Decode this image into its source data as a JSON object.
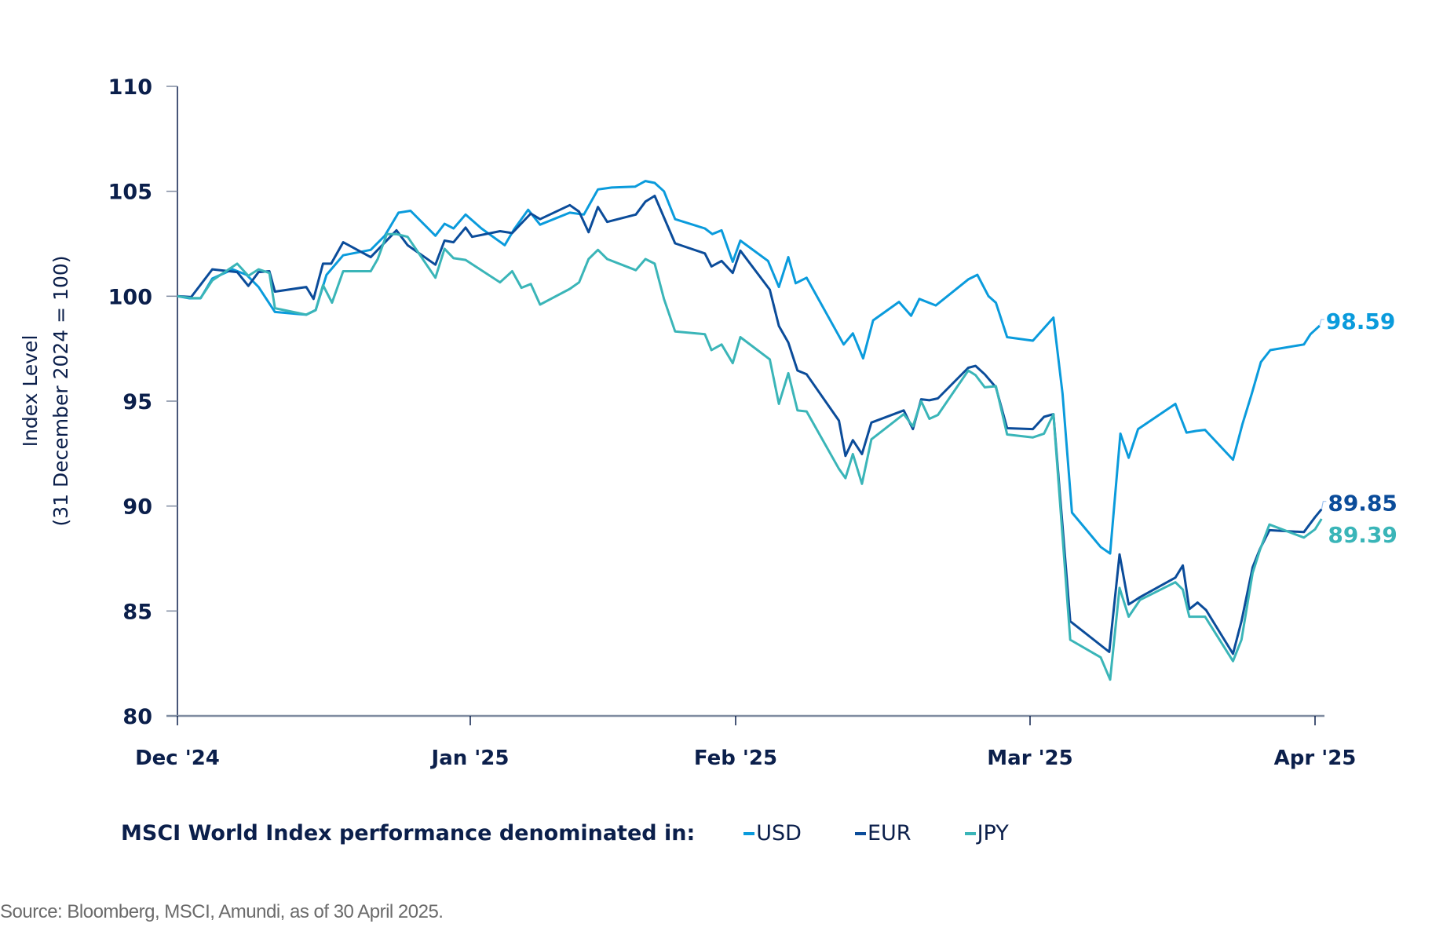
{
  "chart_data": {
    "type": "line",
    "title": "",
    "xlabel": "",
    "ylabel": "Index Level",
    "ylabel_sub": "(31 December 2024 = 100)",
    "x_units": "months since 1 Dec 2024",
    "xlim": [
      0,
      4.02
    ],
    "ylim": [
      80,
      110
    ],
    "yticks": [
      80,
      85,
      90,
      95,
      100,
      105,
      110
    ],
    "ytick_labels": [
      "80",
      "85",
      "90",
      "95",
      "100",
      "105",
      "110"
    ],
    "xticks": [
      0,
      1,
      2,
      3,
      4
    ],
    "xtick_labels": [
      "Dec '24",
      "Jan '25",
      "Feb '25",
      "Mar '25",
      "Apr '25"
    ],
    "grid": false,
    "legend_title": "MSCI World Index performance denominated in:",
    "legend_position": "bottom",
    "series": [
      {
        "name": "USD",
        "color": "#0a9bdc",
        "end_label": "98.59",
        "x": [
          0,
          0.041,
          0.079,
          0.119,
          0.189,
          0.236,
          0.277,
          0.333,
          0.44,
          0.472,
          0.509,
          0.566,
          0.66,
          0.708,
          0.755,
          0.796,
          0.881,
          0.912,
          0.943,
          0.984,
          1.042,
          1.13,
          1.165,
          1.218,
          1.263,
          1.375,
          1.428,
          1.481,
          1.533,
          1.621,
          1.66,
          1.695,
          1.73,
          1.772,
          1.884,
          1.912,
          1.947,
          1.989,
          2.016,
          2.11,
          2.147,
          2.179,
          2.204,
          2.241,
          2.367,
          2.398,
          2.433,
          2.467,
          2.555,
          2.596,
          2.624,
          2.68,
          2.79,
          2.821,
          2.859,
          2.884,
          2.922,
          3.01,
          3.082,
          3.114,
          3.147,
          3.248,
          3.281,
          3.317,
          3.346,
          3.379,
          3.51,
          3.549,
          3.582,
          3.614,
          3.712,
          3.745,
          3.778,
          3.81,
          3.843,
          3.961,
          3.984,
          4.016
        ],
        "y": [
          100,
          99.9,
          99.9,
          100.84,
          101.28,
          101.02,
          100.44,
          99.25,
          99.12,
          99.34,
          101.02,
          101.95,
          102.21,
          102.88,
          103.98,
          104.07,
          102.88,
          103.45,
          103.23,
          103.89,
          103.23,
          102.43,
          103.19,
          104.12,
          103.41,
          103.98,
          103.89,
          105.09,
          105.18,
          105.22,
          105.49,
          105.4,
          105.0,
          103.67,
          103.23,
          102.96,
          103.14,
          101.64,
          102.65,
          101.68,
          100.44,
          101.86,
          100.62,
          100.88,
          97.7,
          98.23,
          97.04,
          98.85,
          99.73,
          99.07,
          99.87,
          99.56,
          100.8,
          101.02,
          100.0,
          99.69,
          98.05,
          97.88,
          98.98,
          95.35,
          89.69,
          88.05,
          87.74,
          93.45,
          92.3,
          93.67,
          94.87,
          93.5,
          93.58,
          93.63,
          92.21,
          93.89,
          95.35,
          96.86,
          97.43,
          97.7,
          98.19,
          98.59
        ]
      },
      {
        "name": "EUR",
        "color": "#0b4c9a",
        "end_label": "89.85",
        "x": [
          0,
          0.047,
          0.119,
          0.204,
          0.242,
          0.277,
          0.314,
          0.333,
          0.44,
          0.465,
          0.497,
          0.525,
          0.566,
          0.66,
          0.748,
          0.786,
          0.881,
          0.912,
          0.943,
          0.984,
          1.007,
          1.112,
          1.158,
          1.228,
          1.263,
          1.375,
          1.41,
          1.446,
          1.481,
          1.516,
          1.624,
          1.66,
          1.695,
          1.772,
          1.884,
          1.909,
          1.947,
          1.989,
          2.016,
          2.116,
          2.147,
          2.179,
          2.21,
          2.241,
          2.351,
          2.373,
          2.398,
          2.429,
          2.461,
          2.571,
          2.602,
          2.63,
          2.658,
          2.687,
          2.79,
          2.815,
          2.846,
          2.884,
          2.922,
          3.01,
          3.049,
          3.082,
          3.141,
          3.278,
          3.314,
          3.346,
          3.386,
          3.51,
          3.536,
          3.559,
          3.588,
          3.618,
          3.712,
          3.742,
          3.781,
          3.807,
          3.84,
          3.961,
          4.0,
          4.023
        ],
        "y": [
          100,
          99.96,
          101.28,
          101.15,
          100.49,
          101.15,
          101.19,
          100.22,
          100.44,
          99.87,
          101.55,
          101.55,
          102.57,
          101.86,
          103.14,
          102.43,
          101.5,
          102.65,
          102.57,
          103.27,
          102.83,
          103.1,
          103.01,
          103.94,
          103.67,
          104.34,
          104.03,
          103.05,
          104.25,
          103.54,
          103.89,
          104.51,
          104.78,
          102.52,
          102.04,
          101.42,
          101.68,
          101.11,
          102.17,
          100.31,
          98.58,
          97.79,
          96.46,
          96.28,
          94.07,
          92.39,
          93.14,
          92.48,
          93.98,
          94.56,
          93.67,
          95.09,
          95.04,
          95.13,
          96.59,
          96.68,
          96.28,
          95.66,
          93.71,
          93.67,
          94.25,
          94.38,
          84.51,
          83.05,
          87.7,
          85.31,
          85.66,
          86.59,
          87.17,
          85.09,
          85.4,
          85.04,
          82.96,
          84.51,
          87.08,
          87.96,
          88.85,
          88.76,
          89.47,
          89.85
        ]
      },
      {
        "name": "JPY",
        "color": "#3ab5b8",
        "end_label": "89.39",
        "x": [
          0,
          0.047,
          0.079,
          0.119,
          0.204,
          0.242,
          0.277,
          0.314,
          0.333,
          0.44,
          0.472,
          0.497,
          0.528,
          0.566,
          0.66,
          0.684,
          0.715,
          0.748,
          0.786,
          0.881,
          0.912,
          0.943,
          0.984,
          1.112,
          1.158,
          1.193,
          1.228,
          1.263,
          1.375,
          1.41,
          1.446,
          1.481,
          1.516,
          1.624,
          1.66,
          1.695,
          1.73,
          1.772,
          1.884,
          1.909,
          1.947,
          1.989,
          2.016,
          2.116,
          2.147,
          2.179,
          2.21,
          2.241,
          2.351,
          2.373,
          2.398,
          2.429,
          2.461,
          2.571,
          2.602,
          2.63,
          2.658,
          2.687,
          2.79,
          2.815,
          2.846,
          2.884,
          2.922,
          3.01,
          3.049,
          3.082,
          3.141,
          3.248,
          3.281,
          3.314,
          3.346,
          3.386,
          3.51,
          3.536,
          3.559,
          3.614,
          3.712,
          3.742,
          3.781,
          3.807,
          3.84,
          3.961,
          4.0,
          4.023
        ],
        "y": [
          100,
          99.91,
          99.91,
          100.75,
          101.55,
          100.97,
          101.28,
          101.11,
          99.43,
          99.12,
          99.34,
          100.53,
          99.69,
          101.19,
          101.19,
          101.77,
          102.96,
          102.96,
          102.83,
          100.88,
          102.26,
          101.81,
          101.73,
          100.66,
          101.19,
          100.4,
          100.58,
          99.6,
          100.35,
          100.66,
          101.77,
          102.21,
          101.77,
          101.24,
          101.77,
          101.55,
          99.87,
          98.32,
          98.19,
          97.43,
          97.7,
          96.81,
          98.05,
          96.99,
          94.87,
          96.33,
          94.56,
          94.51,
          91.77,
          91.33,
          92.48,
          91.06,
          93.18,
          94.38,
          93.8,
          95.0,
          94.16,
          94.34,
          96.46,
          96.24,
          95.66,
          95.71,
          93.41,
          93.27,
          93.45,
          94.38,
          83.63,
          82.79,
          81.73,
          86.1,
          84.73,
          85.53,
          86.37,
          86.02,
          84.73,
          84.73,
          82.61,
          83.63,
          86.81,
          87.92,
          89.12,
          88.5,
          88.89,
          89.39
        ]
      }
    ]
  },
  "source_note": "Source: Bloomberg, MSCI, Amundi, as of 30 April 2025."
}
